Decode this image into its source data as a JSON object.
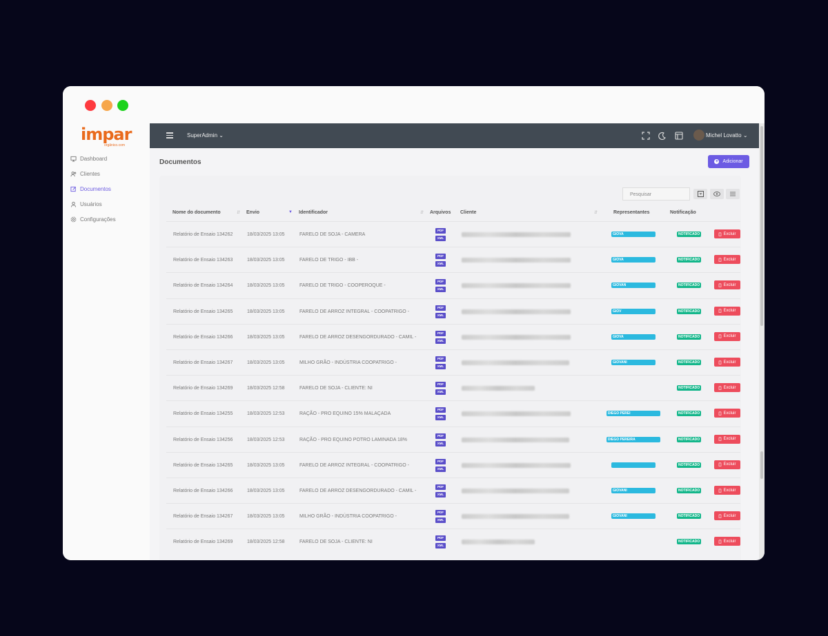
{
  "brand": {
    "logo_text": "impar",
    "logo_sub": "orgânico.com"
  },
  "sidebar": {
    "items": [
      {
        "label": "Dashboard",
        "icon": "monitor-icon",
        "active": false
      },
      {
        "label": "Clientes",
        "icon": "users-icon",
        "active": false
      },
      {
        "label": "Documentos",
        "icon": "edit-icon",
        "active": true
      },
      {
        "label": "Usuários",
        "icon": "user-icon",
        "active": false
      },
      {
        "label": "Configurações",
        "icon": "gear-icon",
        "active": false
      }
    ]
  },
  "topbar": {
    "role": "SuperAdmin",
    "user_name": "Michel Lovatto"
  },
  "page": {
    "title": "Documentos",
    "add_label": "Adicionar"
  },
  "table": {
    "search_placeholder": "Pesquisar",
    "headers": {
      "name": "Nome do documento",
      "sent": "Envio",
      "identifier": "Identificador",
      "files": "Arquivos",
      "client": "Cliente",
      "reps": "Representantes",
      "notification": "Notificação"
    },
    "pdf_label": "PDF",
    "xml_label": "XML",
    "notified_label": "NOTIFICADO",
    "delete_label": "Excluir",
    "rows": [
      {
        "name": "Relatório de Ensaio 134262",
        "sent": "18/03/2025 13:05",
        "identifier": "FARELO DE SOJA - CAMERA",
        "rep": "GIOVA"
      },
      {
        "name": "Relatório de Ensaio 134263",
        "sent": "18/03/2025 13:05",
        "identifier": "FARELO DE TRIGO - IBB -",
        "rep": "GIOVA"
      },
      {
        "name": "Relatório de Ensaio 134264",
        "sent": "18/03/2025 13:05",
        "identifier": "FARELO DE TRIGO - COOPEROQUE -",
        "rep": "GIOVAN"
      },
      {
        "name": "Relatório de Ensaio 134265",
        "sent": "18/03/2025 13:05",
        "identifier": "FARELO DE ARROZ INTEGRAL - COOPATRIGO -",
        "rep": "GIOV"
      },
      {
        "name": "Relatório de Ensaio 134266",
        "sent": "18/03/2025 13:05",
        "identifier": "FARELO DE ARROZ DESENGORDURADO - CAMIL -",
        "rep": "GIOVA"
      },
      {
        "name": "Relatório de Ensaio 134267",
        "sent": "18/03/2025 13:05",
        "identifier": "MILHO GRÃO - INDÚSTRIA COOPATRIGO -",
        "rep": "GIOVANI"
      },
      {
        "name": "Relatório de Ensaio 134269",
        "sent": "18/03/2025 12:58",
        "identifier": "FARELO DE SOJA - CLIENTE: NI",
        "rep": ""
      },
      {
        "name": "Relatório de Ensaio 134255",
        "sent": "18/03/2025 12:53",
        "identifier": "RAÇÃO - PRO EQUINO 15% MALAÇADA",
        "rep": "DIEGO PEREI"
      },
      {
        "name": "Relatório de Ensaio 134256",
        "sent": "18/03/2025 12:53",
        "identifier": "RAÇÃO - PRO EQUINO POTRO LAMINADA 18%",
        "rep": "DIEGO PEREIRA"
      },
      {
        "name": "Relatório de Ensaio 134265",
        "sent": "18/03/2025 13:05",
        "identifier": "FARELO DE ARROZ INTEGRAL - COOPATRIGO -",
        "rep": ""
      },
      {
        "name": "Relatório de Ensaio 134266",
        "sent": "18/03/2025 13:05",
        "identifier": "FARELO DE ARROZ DESENGORDURADO - CAMIL -",
        "rep": "GIOVANI"
      },
      {
        "name": "Relatório de Ensaio 134267",
        "sent": "18/03/2025 13:05",
        "identifier": "MILHO GRÃO - INDÚSTRIA COOPATRIGO -",
        "rep": "GIOVANI"
      },
      {
        "name": "Relatório de Ensaio 134269",
        "sent": "18/03/2025 12:58",
        "identifier": "FARELO DE SOJA - CLIENTE: NI",
        "rep": ""
      }
    ]
  },
  "colors": {
    "accent": "#6c5be3",
    "topbar": "#414a53",
    "notified": "#13b68a",
    "delete": "#ed4c5c",
    "rep_badge": "#2bb9df",
    "logo": "#e96a1c"
  }
}
